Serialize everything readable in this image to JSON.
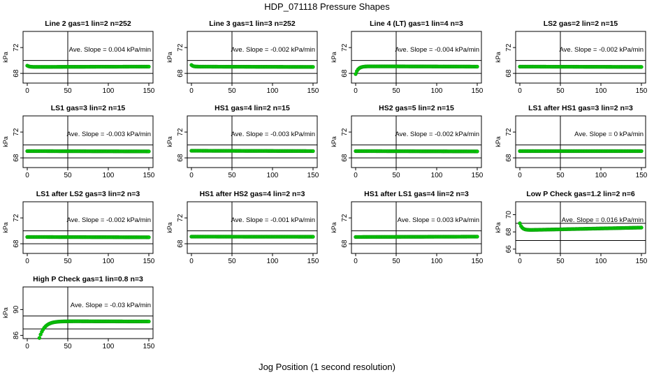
{
  "page": {
    "title": "HDP_071118  Pressure Shapes",
    "x_caption": "Jog Position (1 second resolution)"
  },
  "style": {
    "point_color": "#00cc00",
    "point_stroke": "#119911",
    "axis_color": "#000000"
  },
  "chart_data": [
    {
      "type": "scatter",
      "title": "Line 2 gas=1 lin=2 n=252",
      "ylabel": "kPa",
      "xlim": [
        0,
        150
      ],
      "ylim": [
        66.5,
        74.5
      ],
      "xticks": [
        0,
        50,
        100,
        150
      ],
      "yticks": [
        68,
        72
      ],
      "hlines": [
        68,
        70
      ],
      "vline": 50,
      "annotation": "Ave. Slope = 0.004 kPa/min",
      "shape": {
        "start": 69.2,
        "plateau": 69.0,
        "rise": 6,
        "end": 69.05
      }
    },
    {
      "type": "scatter",
      "title": "Line 3 gas=1 lin=3 n=252",
      "ylabel": "kPa",
      "xlim": [
        0,
        150
      ],
      "ylim": [
        66.5,
        74.5
      ],
      "xticks": [
        0,
        50,
        100,
        150
      ],
      "yticks": [
        68,
        72
      ],
      "hlines": [
        68,
        70
      ],
      "vline": 50,
      "annotation": "Ave. Slope = -0.002 kPa/min",
      "shape": {
        "start": 69.3,
        "plateau": 69.05,
        "rise": 5,
        "end": 69.0
      }
    },
    {
      "type": "scatter",
      "title": "Line 4 (LT) gas=1 lin=4 n=3",
      "ylabel": "kPa",
      "xlim": [
        0,
        150
      ],
      "ylim": [
        66.5,
        74.5
      ],
      "xticks": [
        0,
        50,
        100,
        150
      ],
      "yticks": [
        68,
        72
      ],
      "hlines": [
        68,
        70
      ],
      "vline": 50,
      "annotation": "Ave. Slope = -0.004 kPa/min",
      "shape": {
        "start": 67.9,
        "plateau": 69.1,
        "rise": 8,
        "end": 69.05
      }
    },
    {
      "type": "scatter",
      "title": "LS2 gas=2 lin=2 n=15",
      "ylabel": "kPa",
      "xlim": [
        0,
        150
      ],
      "ylim": [
        66.5,
        74.5
      ],
      "xticks": [
        0,
        50,
        100,
        150
      ],
      "yticks": [
        68,
        72
      ],
      "hlines": [
        68,
        70
      ],
      "vline": 50,
      "annotation": "Ave. Slope = -0.002 kPa/min",
      "shape": {
        "start": 69.05,
        "plateau": 69.05,
        "rise": 2,
        "end": 69.0
      }
    },
    {
      "type": "scatter",
      "title": "LS1 gas=3 lin=2 n=15",
      "ylabel": "kPa",
      "xlim": [
        0,
        150
      ],
      "ylim": [
        66.5,
        74.5
      ],
      "xticks": [
        0,
        50,
        100,
        150
      ],
      "yticks": [
        68,
        72
      ],
      "hlines": [
        68,
        70
      ],
      "vline": 50,
      "annotation": "Ave. Slope = -0.003 kPa/min",
      "shape": {
        "start": 69.05,
        "plateau": 69.05,
        "rise": 2,
        "end": 69.0
      }
    },
    {
      "type": "scatter",
      "title": "HS1 gas=4 lin=2 n=15",
      "ylabel": "kPa",
      "xlim": [
        0,
        150
      ],
      "ylim": [
        66.5,
        74.5
      ],
      "xticks": [
        0,
        50,
        100,
        150
      ],
      "yticks": [
        68,
        72
      ],
      "hlines": [
        68,
        70
      ],
      "vline": 50,
      "annotation": "Ave. Slope = -0.003 kPa/min",
      "shape": {
        "start": 69.1,
        "plateau": 69.1,
        "rise": 2,
        "end": 69.05
      }
    },
    {
      "type": "scatter",
      "title": "HS2 gas=5 lin=2 n=15",
      "ylabel": "kPa",
      "xlim": [
        0,
        150
      ],
      "ylim": [
        66.5,
        74.5
      ],
      "xticks": [
        0,
        50,
        100,
        150
      ],
      "yticks": [
        68,
        72
      ],
      "hlines": [
        68,
        70
      ],
      "vline": 50,
      "annotation": "Ave. Slope = -0.002 kPa/min",
      "shape": {
        "start": 69.05,
        "plateau": 69.05,
        "rise": 2,
        "end": 69.0
      }
    },
    {
      "type": "scatter",
      "title": "LS1 after HS1 gas=3 lin=2 n=3",
      "ylabel": "kPa",
      "xlim": [
        0,
        150
      ],
      "ylim": [
        66.5,
        74.5
      ],
      "xticks": [
        0,
        50,
        100,
        150
      ],
      "yticks": [
        68,
        72
      ],
      "hlines": [
        68,
        70
      ],
      "vline": 50,
      "annotation": "Ave. Slope = 0 kPa/min",
      "shape": {
        "start": 69.05,
        "plateau": 69.05,
        "rise": 2,
        "end": 69.05
      }
    },
    {
      "type": "scatter",
      "title": "LS1 after LS2 gas=3 lin=2 n=3",
      "ylabel": "kPa",
      "xlim": [
        0,
        150
      ],
      "ylim": [
        66.5,
        74.5
      ],
      "xticks": [
        0,
        50,
        100,
        150
      ],
      "yticks": [
        68,
        72
      ],
      "hlines": [
        68,
        70
      ],
      "vline": 50,
      "annotation": "Ave. Slope = -0.002 kPa/min",
      "shape": {
        "start": 69.05,
        "plateau": 69.05,
        "rise": 2,
        "end": 69.0
      }
    },
    {
      "type": "scatter",
      "title": "HS1 after HS2 gas=4 lin=2 n=3",
      "ylabel": "kPa",
      "xlim": [
        0,
        150
      ],
      "ylim": [
        66.5,
        74.5
      ],
      "xticks": [
        0,
        50,
        100,
        150
      ],
      "yticks": [
        68,
        72
      ],
      "hlines": [
        68,
        70
      ],
      "vline": 50,
      "annotation": "Ave. Slope = -0.001 kPa/min",
      "shape": {
        "start": 69.1,
        "plateau": 69.1,
        "rise": 2,
        "end": 69.08
      }
    },
    {
      "type": "scatter",
      "title": "HS1 after LS1 gas=4 lin=2 n=3",
      "ylabel": "kPa",
      "xlim": [
        0,
        150
      ],
      "ylim": [
        66.5,
        74.5
      ],
      "xticks": [
        0,
        50,
        100,
        150
      ],
      "yticks": [
        68,
        72
      ],
      "hlines": [
        68,
        70
      ],
      "vline": 50,
      "annotation": "Ave. Slope = 0.003 kPa/min",
      "shape": {
        "start": 69.05,
        "plateau": 69.05,
        "rise": 2,
        "end": 69.1
      }
    },
    {
      "type": "scatter",
      "title": "Low P Check gas=1.2 lin=2 n=6",
      "ylabel": "kPa",
      "xlim": [
        0,
        150
      ],
      "ylim": [
        65.5,
        71.5
      ],
      "xticks": [
        0,
        50,
        100,
        150
      ],
      "yticks": [
        66,
        68,
        70
      ],
      "hlines": [
        67,
        69
      ],
      "vline": 50,
      "annotation": "Ave. Slope = 0.016 kPa/min",
      "shape": {
        "start": 69.0,
        "plateau": 68.2,
        "rise": 7,
        "end": 68.5
      }
    },
    {
      "type": "scatter",
      "title": "High P Check gas=1 lin=0.8 n=3",
      "ylabel": "kPa",
      "xlim": [
        0,
        150
      ],
      "ylim": [
        85.5,
        93.5
      ],
      "xticks": [
        0,
        50,
        100,
        150
      ],
      "yticks": [
        86,
        90
      ],
      "hlines": [
        87,
        89
      ],
      "vline": 50,
      "annotation": "Ave. Slope = -0.03 kPa/min",
      "shape": {
        "start": 85.6,
        "plateau": 88.2,
        "rise": 16,
        "end": 88.15,
        "x0": 15
      }
    }
  ]
}
